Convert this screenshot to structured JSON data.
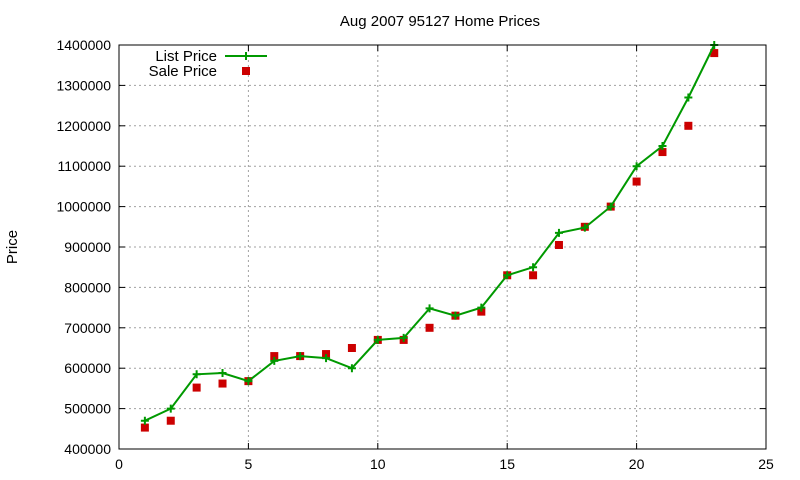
{
  "chart_data": {
    "type": "line",
    "title": "Aug 2007 95127 Home Prices",
    "xlabel": "",
    "ylabel": "Price",
    "xlim": [
      0,
      25
    ],
    "ylim": [
      400000,
      1400000
    ],
    "xticks": [
      "0",
      "5",
      "10",
      "15",
      "20",
      "25"
    ],
    "yticks": [
      "400000",
      "500000",
      "600000",
      "700000",
      "800000",
      "900000",
      "1000000",
      "1100000",
      "1200000",
      "1300000",
      "1400000"
    ],
    "grid": true,
    "legend_position": "top-left",
    "series": [
      {
        "name": "List Price",
        "style": "line+cross",
        "color": "#009900",
        "x": [
          1,
          2,
          3,
          4,
          5,
          6,
          7,
          8,
          9,
          10,
          11,
          12,
          13,
          14,
          15,
          16,
          17,
          18,
          19,
          20,
          21,
          22,
          23
        ],
        "values": [
          470000,
          500000,
          585000,
          588000,
          568000,
          618000,
          630000,
          625000,
          600000,
          670000,
          675000,
          748000,
          730000,
          750000,
          830000,
          850000,
          935000,
          948000,
          1000000,
          1100000,
          1150000,
          1270000,
          1400000
        ]
      },
      {
        "name": "Sale Price",
        "style": "square",
        "color": "#cc0000",
        "x": [
          1,
          2,
          3,
          4,
          5,
          6,
          7,
          8,
          9,
          10,
          11,
          12,
          13,
          14,
          15,
          16,
          17,
          18,
          19,
          20,
          21,
          22,
          23
        ],
        "values": [
          453000,
          470000,
          552000,
          562000,
          568000,
          630000,
          630000,
          635000,
          650000,
          670000,
          670000,
          700000,
          730000,
          740000,
          830000,
          830000,
          905000,
          950000,
          1000000,
          1062000,
          1135000,
          1200000,
          1380000
        ]
      }
    ]
  }
}
